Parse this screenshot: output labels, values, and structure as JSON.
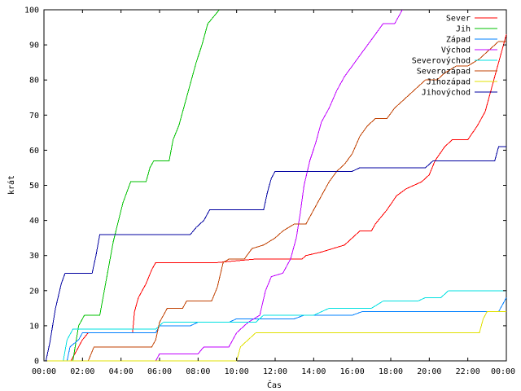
{
  "chart_data": {
    "type": "line",
    "title": "",
    "xlabel": "Čas",
    "ylabel": "krát",
    "xlim": [
      0,
      24
    ],
    "ylim": [
      0,
      100
    ],
    "x_ticks": [
      {
        "v": 0,
        "label": "00:00"
      },
      {
        "v": 2,
        "label": "02:00"
      },
      {
        "v": 4,
        "label": "04:00"
      },
      {
        "v": 6,
        "label": "06:00"
      },
      {
        "v": 8,
        "label": "08:00"
      },
      {
        "v": 10,
        "label": "10:00"
      },
      {
        "v": 12,
        "label": "12:00"
      },
      {
        "v": 14,
        "label": "14:00"
      },
      {
        "v": 16,
        "label": "16:00"
      },
      {
        "v": 18,
        "label": "18:00"
      },
      {
        "v": 20,
        "label": "20:00"
      },
      {
        "v": 22,
        "label": "22:00"
      },
      {
        "v": 24,
        "label": "00:00"
      }
    ],
    "y_ticks": [
      0,
      10,
      20,
      30,
      40,
      50,
      60,
      70,
      80,
      90,
      100
    ],
    "grid": false,
    "legend_position": "top-right",
    "series": [
      {
        "name": "Sever",
        "color": "#ff0000",
        "points": [
          [
            0,
            0
          ],
          [
            1.4,
            0
          ],
          [
            1.6,
            2
          ],
          [
            2.0,
            6
          ],
          [
            2.3,
            8
          ],
          [
            4.6,
            8
          ],
          [
            4.7,
            14
          ],
          [
            4.9,
            18
          ],
          [
            5.3,
            22
          ],
          [
            5.6,
            26
          ],
          [
            5.8,
            28
          ],
          [
            9.0,
            28
          ],
          [
            11.0,
            29
          ],
          [
            13.4,
            29
          ],
          [
            13.6,
            30
          ],
          [
            14.4,
            31
          ],
          [
            15.6,
            33
          ],
          [
            16.0,
            35
          ],
          [
            16.4,
            37
          ],
          [
            17.0,
            37
          ],
          [
            17.2,
            39
          ],
          [
            17.8,
            43
          ],
          [
            18.3,
            47
          ],
          [
            18.8,
            49
          ],
          [
            19.6,
            51
          ],
          [
            20.0,
            53
          ],
          [
            20.3,
            57
          ],
          [
            20.8,
            61
          ],
          [
            21.2,
            63
          ],
          [
            22.0,
            63
          ],
          [
            22.5,
            67
          ],
          [
            22.9,
            71
          ],
          [
            23.3,
            79
          ],
          [
            23.6,
            85
          ],
          [
            23.8,
            89
          ],
          [
            24.0,
            93
          ]
        ]
      },
      {
        "name": "Jih",
        "color": "#00c000",
        "points": [
          [
            0,
            0
          ],
          [
            1.5,
            0
          ],
          [
            1.8,
            10
          ],
          [
            2.1,
            13
          ],
          [
            2.9,
            13
          ],
          [
            3.2,
            22
          ],
          [
            3.6,
            34
          ],
          [
            4.1,
            45
          ],
          [
            4.5,
            51
          ],
          [
            5.3,
            51
          ],
          [
            5.5,
            55
          ],
          [
            5.7,
            57
          ],
          [
            6.5,
            57
          ],
          [
            6.7,
            63
          ],
          [
            7.0,
            67
          ],
          [
            7.3,
            73
          ],
          [
            7.6,
            79
          ],
          [
            7.9,
            85
          ],
          [
            8.2,
            90
          ],
          [
            8.5,
            96
          ],
          [
            8.8,
            98
          ],
          [
            9.1,
            100
          ]
        ]
      },
      {
        "name": "Západ",
        "color": "#0080ff",
        "points": [
          [
            0,
            0
          ],
          [
            1.2,
            0
          ],
          [
            1.35,
            4
          ],
          [
            1.8,
            6
          ],
          [
            2.0,
            8
          ],
          [
            5.8,
            8
          ],
          [
            6.0,
            10
          ],
          [
            7.6,
            10
          ],
          [
            8.0,
            11
          ],
          [
            9.6,
            11
          ],
          [
            10.0,
            12
          ],
          [
            13.0,
            12
          ],
          [
            13.5,
            13
          ],
          [
            16.0,
            13
          ],
          [
            16.5,
            14
          ],
          [
            23.6,
            14
          ],
          [
            23.8,
            16
          ],
          [
            24.0,
            18
          ]
        ]
      },
      {
        "name": "Východ",
        "color": "#c000ff",
        "points": [
          [
            0,
            0
          ],
          [
            5.8,
            0
          ],
          [
            6.0,
            2
          ],
          [
            8.0,
            2
          ],
          [
            8.3,
            4
          ],
          [
            9.6,
            4
          ],
          [
            10.0,
            8
          ],
          [
            10.6,
            11
          ],
          [
            11.2,
            13
          ],
          [
            11.5,
            20
          ],
          [
            11.8,
            24
          ],
          [
            12.4,
            25
          ],
          [
            12.6,
            27
          ],
          [
            12.8,
            29
          ],
          [
            13.1,
            35
          ],
          [
            13.3,
            42
          ],
          [
            13.5,
            50
          ],
          [
            13.8,
            57
          ],
          [
            14.1,
            62
          ],
          [
            14.4,
            68
          ],
          [
            14.8,
            72
          ],
          [
            15.2,
            77
          ],
          [
            15.6,
            81
          ],
          [
            16.0,
            84
          ],
          [
            16.4,
            87
          ],
          [
            16.8,
            90
          ],
          [
            17.2,
            93
          ],
          [
            17.6,
            96
          ],
          [
            18.2,
            96
          ],
          [
            18.4,
            98
          ],
          [
            18.6,
            100
          ]
        ]
      },
      {
        "name": "Severovýchod",
        "color": "#00e0e0",
        "points": [
          [
            0,
            0
          ],
          [
            1.0,
            0
          ],
          [
            1.2,
            6
          ],
          [
            1.5,
            9
          ],
          [
            5.8,
            9
          ],
          [
            6.2,
            11
          ],
          [
            11.0,
            11
          ],
          [
            11.4,
            13
          ],
          [
            14.0,
            13
          ],
          [
            14.8,
            15
          ],
          [
            17.0,
            15
          ],
          [
            17.6,
            17
          ],
          [
            19.4,
            17
          ],
          [
            19.8,
            18
          ],
          [
            20.6,
            18
          ],
          [
            21.0,
            20
          ],
          [
            24.0,
            20
          ]
        ]
      },
      {
        "name": "Severozápad",
        "color": "#c04000",
        "points": [
          [
            0,
            0
          ],
          [
            2.3,
            0
          ],
          [
            2.6,
            4
          ],
          [
            5.6,
            4
          ],
          [
            5.8,
            6
          ],
          [
            6.0,
            11
          ],
          [
            6.4,
            15
          ],
          [
            7.2,
            15
          ],
          [
            7.4,
            17
          ],
          [
            8.7,
            17
          ],
          [
            9.0,
            21
          ],
          [
            9.3,
            28
          ],
          [
            9.6,
            29
          ],
          [
            10.4,
            29
          ],
          [
            10.8,
            32
          ],
          [
            11.4,
            33
          ],
          [
            12.0,
            35
          ],
          [
            12.4,
            37
          ],
          [
            13.0,
            39
          ],
          [
            13.6,
            39
          ],
          [
            14.0,
            43
          ],
          [
            14.4,
            47
          ],
          [
            14.8,
            51
          ],
          [
            15.2,
            54
          ],
          [
            15.6,
            56
          ],
          [
            16.0,
            59
          ],
          [
            16.4,
            64
          ],
          [
            16.8,
            67
          ],
          [
            17.2,
            69
          ],
          [
            17.8,
            69
          ],
          [
            18.2,
            72
          ],
          [
            18.6,
            74
          ],
          [
            19.0,
            76
          ],
          [
            19.4,
            78
          ],
          [
            19.8,
            80
          ],
          [
            20.4,
            80
          ],
          [
            20.8,
            82
          ],
          [
            21.4,
            84
          ],
          [
            22.0,
            84
          ],
          [
            22.6,
            86
          ],
          [
            23.0,
            88
          ],
          [
            23.4,
            90
          ],
          [
            23.6,
            91
          ],
          [
            24.0,
            91
          ]
        ]
      },
      {
        "name": "Jihozápad",
        "color": "#e0e000",
        "points": [
          [
            0,
            0
          ],
          [
            10.0,
            0
          ],
          [
            10.2,
            4
          ],
          [
            10.6,
            6
          ],
          [
            11.0,
            8
          ],
          [
            22.6,
            8
          ],
          [
            22.8,
            12
          ],
          [
            23.0,
            14
          ],
          [
            24.0,
            14
          ]
        ]
      },
      {
        "name": "Jihovýchod",
        "color": "#0000a0",
        "points": [
          [
            0,
            0
          ],
          [
            0.1,
            0
          ],
          [
            0.3,
            5
          ],
          [
            0.6,
            15
          ],
          [
            0.9,
            22
          ],
          [
            1.1,
            25
          ],
          [
            2.5,
            25
          ],
          [
            2.7,
            30
          ],
          [
            2.9,
            36
          ],
          [
            7.6,
            36
          ],
          [
            7.9,
            38
          ],
          [
            8.3,
            40
          ],
          [
            8.6,
            43
          ],
          [
            11.4,
            43
          ],
          [
            11.6,
            48
          ],
          [
            11.8,
            52
          ],
          [
            12.0,
            54
          ],
          [
            14.0,
            54
          ],
          [
            16.0,
            54
          ],
          [
            16.4,
            55
          ],
          [
            19.8,
            55
          ],
          [
            20.2,
            57
          ],
          [
            23.4,
            57
          ],
          [
            23.6,
            61
          ],
          [
            24.0,
            61
          ]
        ]
      }
    ]
  }
}
